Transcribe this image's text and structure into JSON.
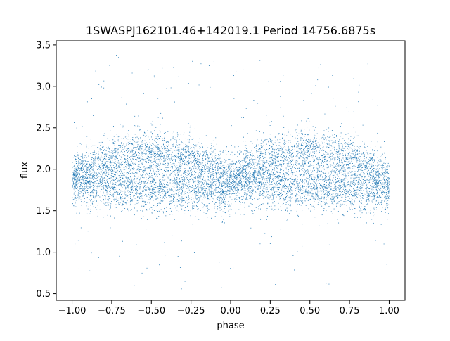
{
  "chart_data": {
    "type": "scatter",
    "title": "1SWASPJ162101.46+142019.1 Period 14756.6875s",
    "xlabel": "phase",
    "ylabel": "flux",
    "xlim": [
      -1.1,
      1.1
    ],
    "ylim": [
      0.42,
      3.55
    ],
    "grid": false,
    "legend": "none",
    "x_ticks": [
      -1.0,
      -0.75,
      -0.5,
      -0.25,
      0.0,
      0.25,
      0.5,
      0.75,
      1.0
    ],
    "x_tick_labels": [
      "−1.00",
      "−0.75",
      "−0.50",
      "−0.25",
      "0.00",
      "0.25",
      "0.50",
      "0.75",
      "1.00"
    ],
    "y_ticks": [
      0.5,
      1.0,
      1.5,
      2.0,
      2.5,
      3.0,
      3.5
    ],
    "y_tick_labels": [
      "0.5",
      "1.0",
      "1.5",
      "2.0",
      "2.5",
      "3.0",
      "3.5"
    ],
    "series": [
      {
        "color": "#1f77b4",
        "x_range": [
          -1.0,
          1.0
        ],
        "period_in_phase": 1.0,
        "upper_branch": [
          {
            "x": -0.55,
            "y": 2.22
          },
          {
            "x": -0.25,
            "y": 2.15
          },
          {
            "x": 0.0,
            "y": 1.9
          },
          {
            "x": 0.25,
            "y": 2.15
          },
          {
            "x": 0.45,
            "y": 2.22
          }
        ],
        "lower_branch": [
          {
            "x": -1.0,
            "y": 1.82
          },
          {
            "x": -0.75,
            "y": 1.8
          },
          {
            "x": -0.1,
            "y": 1.76
          },
          {
            "x": 0.0,
            "y": 1.75
          },
          {
            "x": 0.5,
            "y": 1.82
          },
          {
            "x": 1.0,
            "y": 1.8
          }
        ],
        "typical_flux_range": [
          1.3,
          2.65
        ],
        "outlier_flux_range": [
          0.55,
          3.4
        ]
      }
    ]
  }
}
